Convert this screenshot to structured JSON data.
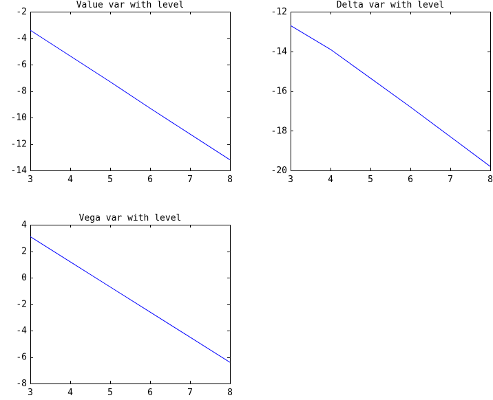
{
  "chart_data": [
    {
      "type": "line",
      "title": "Value var with level",
      "xlabel": "",
      "ylabel": "",
      "xlim": [
        3,
        8
      ],
      "ylim": [
        -14,
        -2
      ],
      "xticks": [
        "3",
        "4",
        "5",
        "6",
        "7",
        "8"
      ],
      "yticks": [
        "-14",
        "-12",
        "-10",
        "-8",
        "-6",
        "-4",
        "-2"
      ],
      "series": [
        {
          "x": [
            3,
            4,
            5,
            6,
            7,
            8
          ],
          "y": [
            -3.4,
            -5.35,
            -7.3,
            -9.3,
            -11.25,
            -13.2
          ]
        }
      ]
    },
    {
      "type": "line",
      "title": "Delta var with level",
      "xlabel": "",
      "ylabel": "",
      "xlim": [
        3,
        8
      ],
      "ylim": [
        -20,
        -12
      ],
      "xticks": [
        "3",
        "4",
        "5",
        "6",
        "7",
        "8"
      ],
      "yticks": [
        "-20",
        "-18",
        "-16",
        "-14",
        "-12"
      ],
      "series": [
        {
          "x": [
            3,
            4,
            5,
            6,
            7,
            8
          ],
          "y": [
            -12.7,
            -13.9,
            -15.35,
            -16.8,
            -18.3,
            -19.8
          ]
        }
      ]
    },
    {
      "type": "line",
      "title": "Vega var with level",
      "xlabel": "",
      "ylabel": "",
      "xlim": [
        3,
        8
      ],
      "ylim": [
        -8,
        4
      ],
      "xticks": [
        "3",
        "4",
        "5",
        "6",
        "7",
        "8"
      ],
      "yticks": [
        "-8",
        "-6",
        "-4",
        "-2",
        "0",
        "2",
        "4"
      ],
      "series": [
        {
          "x": [
            3,
            4,
            5,
            6,
            7,
            8
          ],
          "y": [
            3.1,
            1.2,
            -0.7,
            -2.6,
            -4.5,
            -6.4
          ]
        }
      ]
    }
  ],
  "colors": {
    "line": "#0000ff",
    "axes": "#000000",
    "background": "#ffffff"
  }
}
